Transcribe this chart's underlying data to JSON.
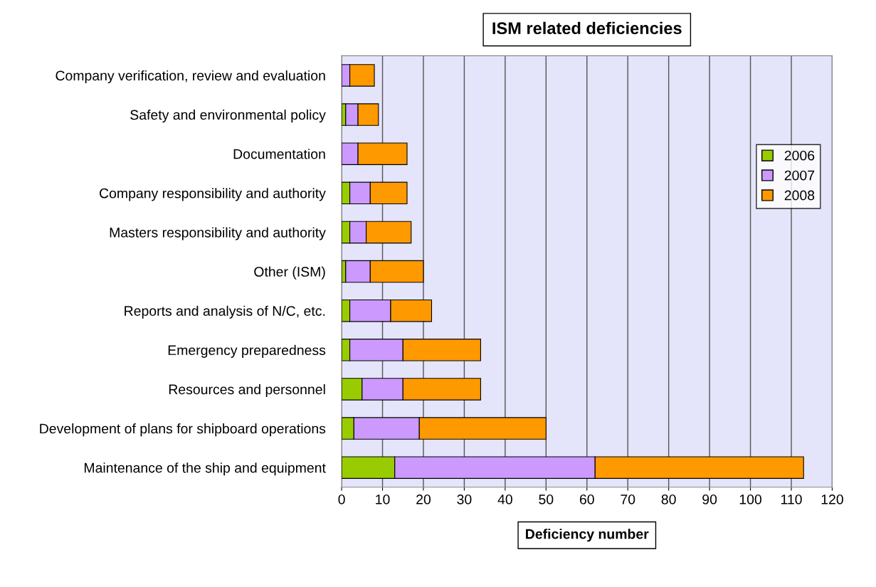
{
  "chart_data": {
    "type": "bar",
    "orientation": "horizontal",
    "stacked": true,
    "title": "ISM related deficiencies",
    "xlabel": "Deficiency number",
    "categories": [
      "Company verification, review and evaluation",
      "Safety and environmental policy",
      "Documentation",
      "Company responsibility and authority",
      "Masters responsibility and authority",
      "Other (ISM)",
      "Reports and analysis of N/C, etc.",
      "Emergency preparedness",
      "Resources and personnel",
      "Development of plans for shipboard operations",
      "Maintenance of the ship and equipment"
    ],
    "series": [
      {
        "name": "2006",
        "color": "#99cc00",
        "values": [
          0,
          1,
          0,
          2,
          2,
          1,
          2,
          2,
          5,
          3,
          13
        ]
      },
      {
        "name": "2007",
        "color": "#cc99ff",
        "values": [
          2,
          3,
          4,
          5,
          4,
          6,
          10,
          13,
          10,
          16,
          49
        ]
      },
      {
        "name": "2008",
        "color": "#ff9900",
        "values": [
          6,
          5,
          12,
          9,
          11,
          13,
          10,
          19,
          19,
          31,
          51
        ]
      }
    ],
    "xlim": [
      0,
      120
    ],
    "xticks": [
      0,
      10,
      20,
      30,
      40,
      50,
      60,
      70,
      80,
      90,
      100,
      110,
      120
    ],
    "grid": "x",
    "legend": "right"
  }
}
